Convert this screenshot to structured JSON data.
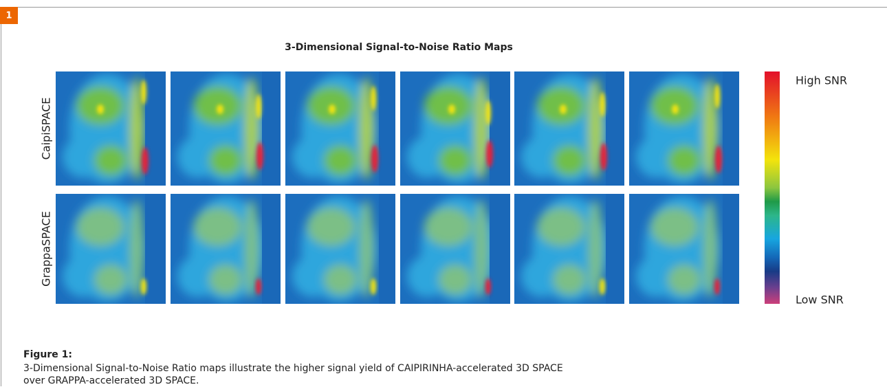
{
  "badge": "1",
  "figure": {
    "title": "3-Dimensional Signal-to-Noise Ratio Maps",
    "row_labels": [
      "CaipiSPACE",
      "GrappaSPACE"
    ],
    "colorbar": {
      "high_label": "High SNR",
      "low_label": "Low SNR"
    }
  },
  "caption": {
    "title": "Figure 1:",
    "text": "3-Dimensional Signal-to-Noise Ratio maps illustrate the higher signal yield of CAIPIRINHA-accelerated 3D SPACE over GRAPPA-accelerated 3D SPACE."
  }
}
